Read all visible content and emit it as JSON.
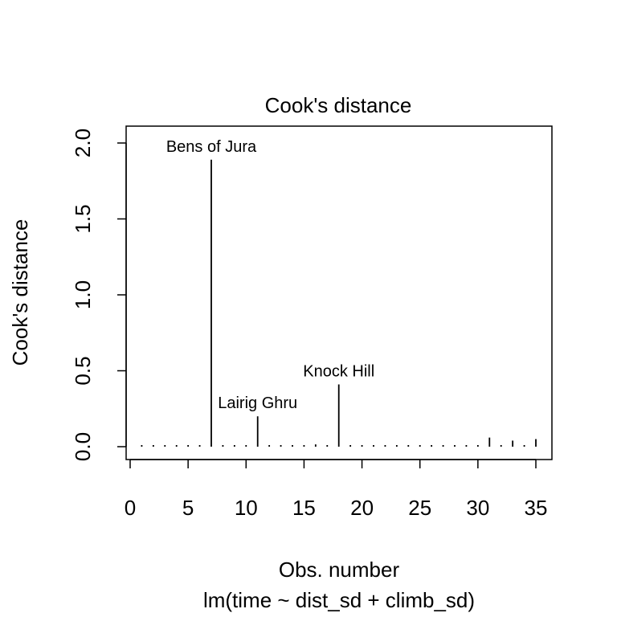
{
  "chart_data": {
    "type": "bar",
    "title": "Cook's distance",
    "xlabel": "Obs. number",
    "sublabel": "lm(time ~ dist_sd + climb_sd)",
    "ylabel": "Cook's distance",
    "xlim": [
      0,
      35
    ],
    "ylim": [
      0,
      2.0
    ],
    "x_ticks": [
      0,
      5,
      10,
      15,
      20,
      25,
      30,
      35
    ],
    "x_tick_labels": [
      "0",
      "5",
      "10",
      "15",
      "20",
      "25",
      "30",
      "35"
    ],
    "y_ticks": [
      0,
      0.5,
      1.0,
      1.5,
      2.0
    ],
    "y_tick_labels": [
      "0.0",
      "0.5",
      "1.0",
      "1.5",
      "2.0"
    ],
    "x": [
      1,
      2,
      3,
      4,
      5,
      6,
      7,
      8,
      9,
      10,
      11,
      12,
      13,
      14,
      15,
      16,
      17,
      18,
      19,
      20,
      21,
      22,
      23,
      24,
      25,
      26,
      27,
      28,
      29,
      30,
      31,
      32,
      33,
      34,
      35
    ],
    "values": [
      0.002,
      0.003,
      0.001,
      0.004,
      0.008,
      0.002,
      1.89,
      0.004,
      0.003,
      0.002,
      0.2,
      0.001,
      0.004,
      0.007,
      0.01,
      0.015,
      0.002,
      0.41,
      0.009,
      0.002,
      0.001,
      0.003,
      0.002,
      0.004,
      0.001,
      0.006,
      0.003,
      0.002,
      0.004,
      0.002,
      0.06,
      0.003,
      0.04,
      0.007,
      0.05
    ],
    "annotations": [
      {
        "x": 7,
        "label": "Bens of Jura"
      },
      {
        "x": 11,
        "label": "Lairig Ghru"
      },
      {
        "x": 18,
        "label": "Knock Hill"
      }
    ]
  }
}
